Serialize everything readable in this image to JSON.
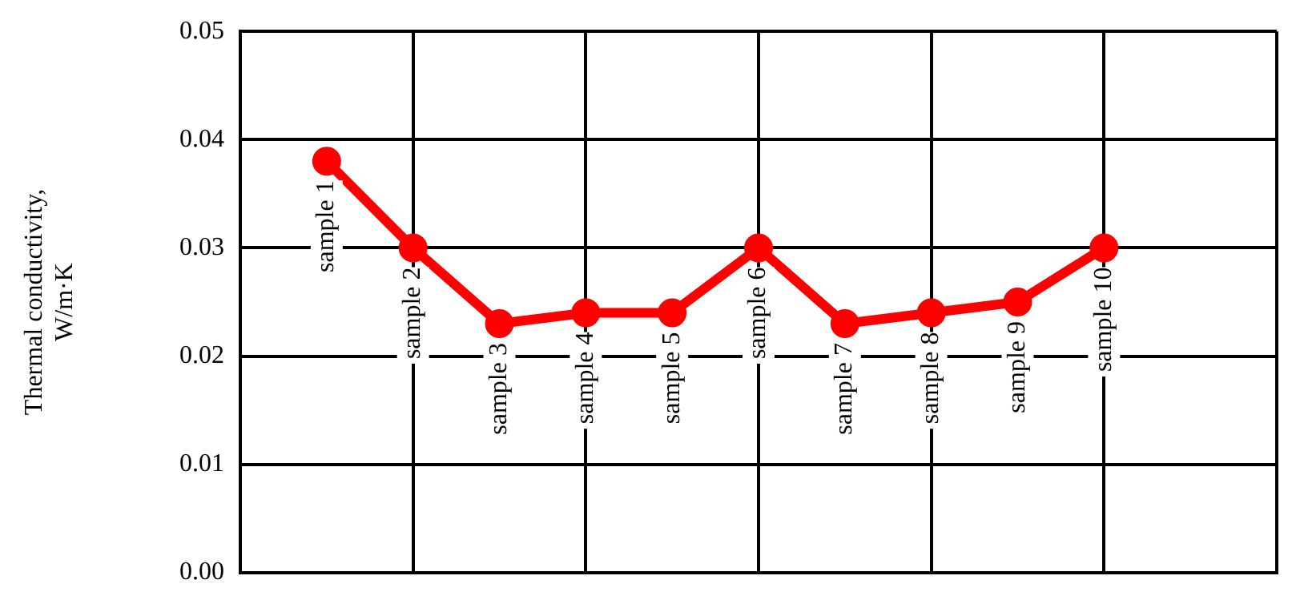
{
  "chart_data": {
    "type": "line",
    "ylabel": "Thermal conductivity,\nW/m·K",
    "categories": [
      "sample 1",
      "sample 2",
      "sample 3",
      "sample 4",
      "sample 5",
      "sample 6",
      "sample 7",
      "sample 8",
      "sample 9",
      "sample 10"
    ],
    "series": [
      {
        "color": "#ff0000",
        "values": [
          0.038,
          0.03,
          0.023,
          0.024,
          0.024,
          0.03,
          0.023,
          0.024,
          0.025,
          0.03
        ]
      }
    ],
    "ylim": [
      0,
      0.05
    ],
    "yticks": [
      {
        "value": 0,
        "label": "0.00"
      },
      {
        "value": 0.01,
        "label": "0.01"
      },
      {
        "value": 0.02,
        "label": "0.02"
      },
      {
        "value": 0.03,
        "label": "0.03"
      },
      {
        "value": 0.04,
        "label": "0.04"
      },
      {
        "value": 0.05,
        "label": "0.05"
      }
    ],
    "grid": true,
    "legend": false,
    "marker": "circle",
    "line_style": "solid",
    "tick_labels": "y"
  }
}
